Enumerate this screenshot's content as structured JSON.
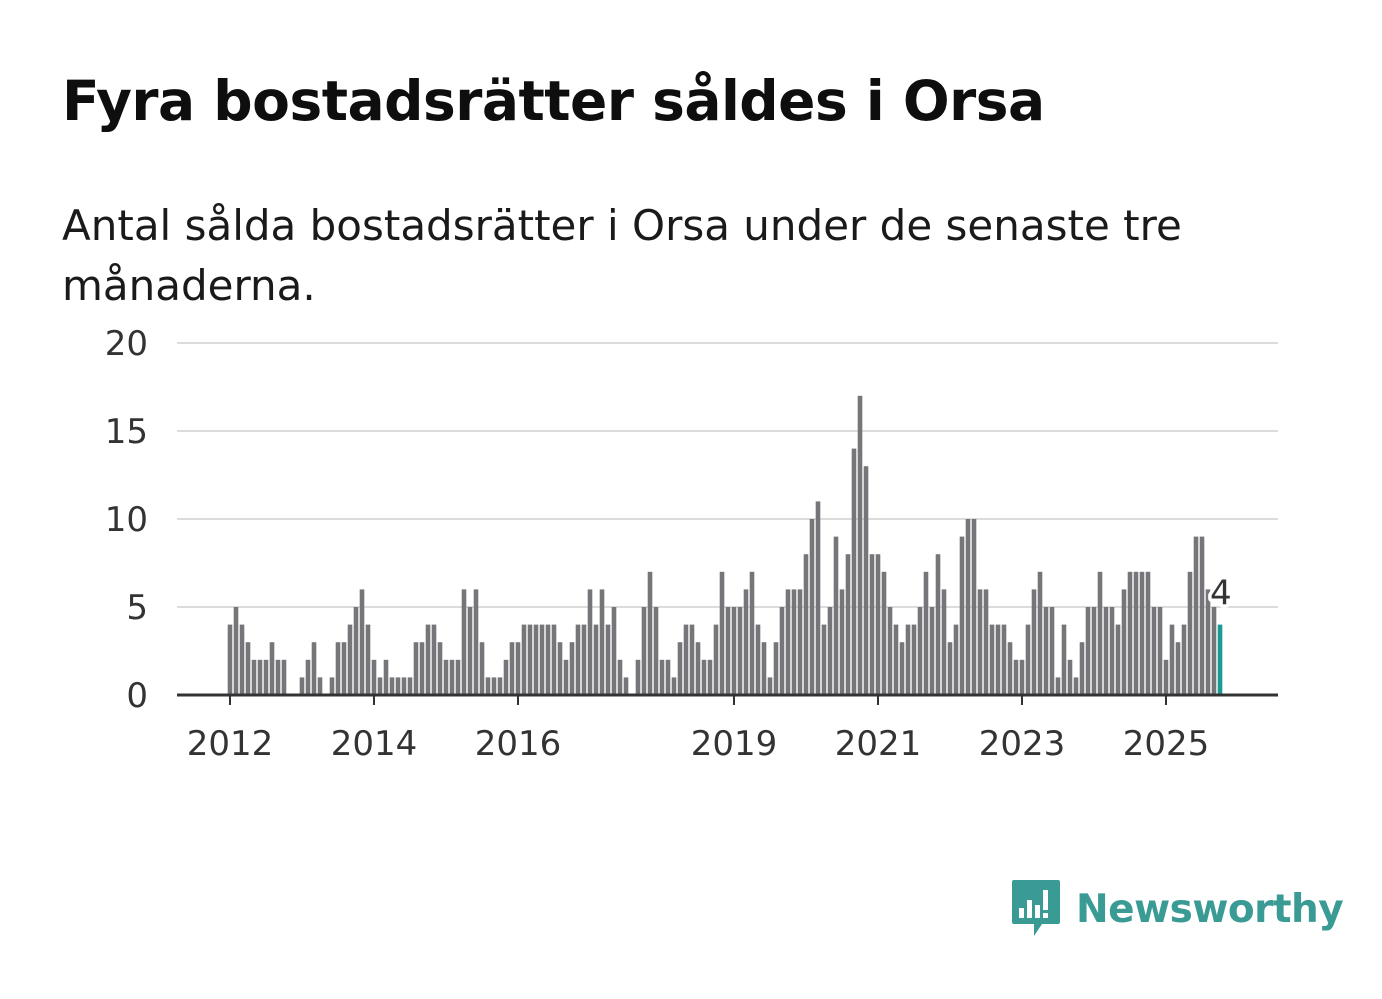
{
  "title": "Fyra bostadsrätter såldes i Orsa",
  "subtitle": "Antal sålda bostadsrätter i Orsa under de senaste tre månaderna.",
  "brand": {
    "name": "Newsworthy",
    "icon": "newsworthy-logo-icon",
    "color": "#3a9a94"
  },
  "chart_data": {
    "type": "bar",
    "title": "Fyra bostadsrätter såldes i Orsa",
    "xlabel": "",
    "ylabel": "",
    "ylim": [
      0,
      20
    ],
    "yticks": [
      "0",
      "5",
      "10",
      "15",
      "20"
    ],
    "xticks": [
      {
        "label": "2012",
        "index": 0
      },
      {
        "label": "2014",
        "index": 24
      },
      {
        "label": "2016",
        "index": 48
      },
      {
        "label": "2019",
        "index": 84
      },
      {
        "label": "2021",
        "index": 108
      },
      {
        "label": "2023",
        "index": 132
      },
      {
        "label": "2025",
        "index": 156
      }
    ],
    "start": "2012-01",
    "bar_color": "#76757a",
    "highlight_color": "#1a9a93",
    "highlight_index": 165,
    "highlight_label": "4",
    "values": [
      4,
      5,
      4,
      3,
      2,
      2,
      2,
      3,
      2,
      2,
      0,
      0,
      1,
      2,
      3,
      1,
      0,
      1,
      3,
      3,
      4,
      5,
      6,
      4,
      2,
      1,
      2,
      1,
      1,
      1,
      1,
      3,
      3,
      4,
      4,
      3,
      2,
      2,
      2,
      6,
      5,
      6,
      3,
      1,
      1,
      1,
      2,
      3,
      3,
      4,
      4,
      4,
      4,
      4,
      4,
      3,
      2,
      3,
      4,
      4,
      6,
      4,
      6,
      4,
      5,
      2,
      1,
      0,
      2,
      5,
      7,
      5,
      2,
      2,
      1,
      3,
      4,
      4,
      3,
      2,
      2,
      4,
      7,
      5,
      5,
      5,
      6,
      7,
      4,
      3,
      1,
      3,
      5,
      6,
      6,
      6,
      8,
      10,
      11,
      4,
      5,
      9,
      6,
      8,
      14,
      17,
      13,
      8,
      8,
      7,
      5,
      4,
      3,
      4,
      4,
      5,
      7,
      5,
      8,
      6,
      3,
      4,
      9,
      10,
      10,
      6,
      6,
      4,
      4,
      4,
      3,
      2,
      2,
      4,
      6,
      7,
      5,
      5,
      1,
      4,
      2,
      1,
      3,
      5,
      5,
      7,
      5,
      5,
      4,
      6,
      7,
      7,
      7,
      7,
      5,
      5,
      2,
      4,
      3,
      4,
      7,
      9,
      9,
      6,
      5,
      4
    ]
  }
}
